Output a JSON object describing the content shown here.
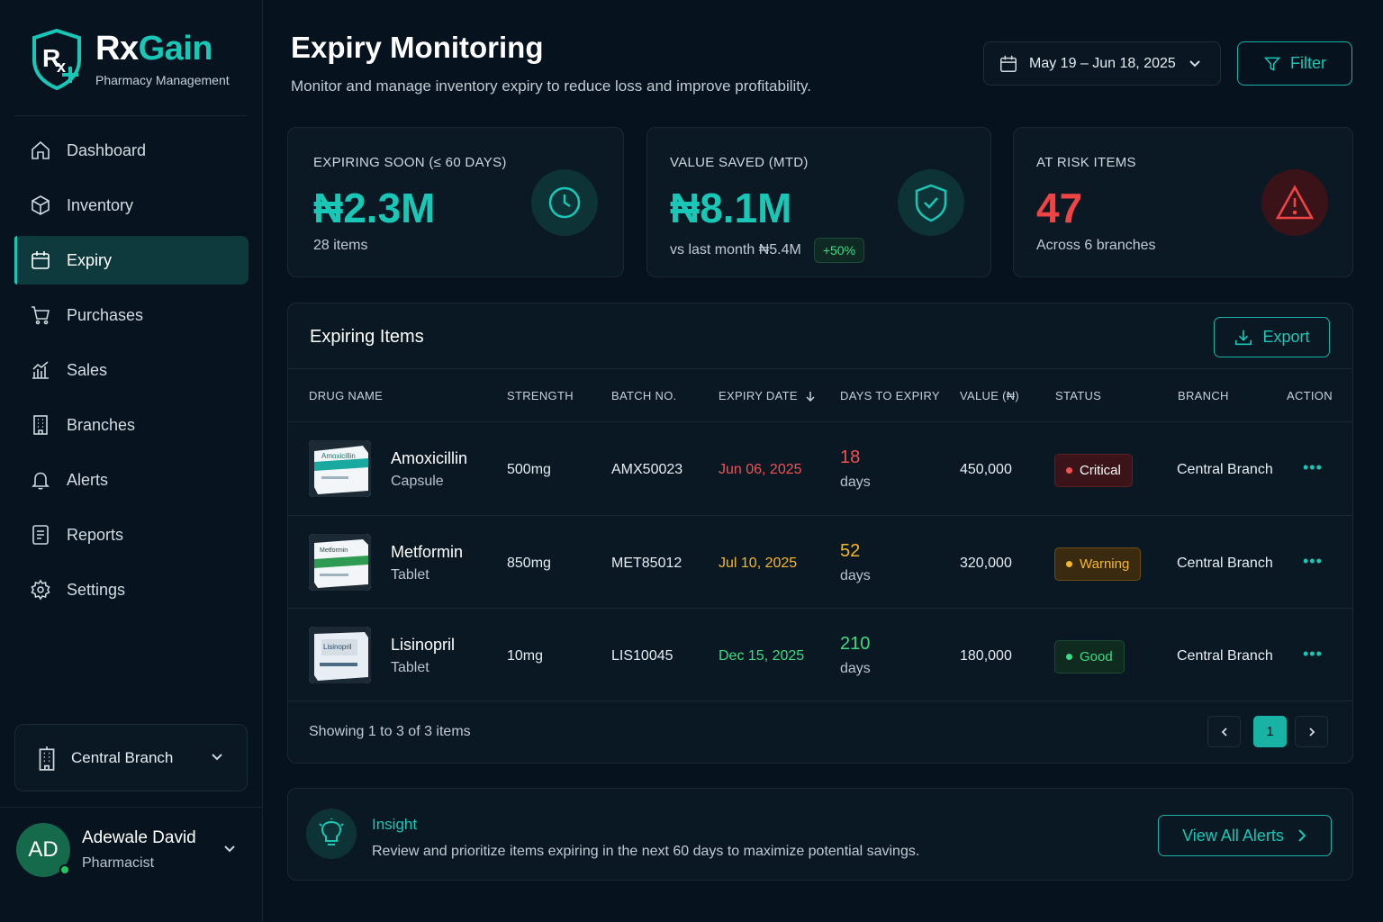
{
  "brand": {
    "name_part1": "Rx",
    "name_part2": "Gain",
    "subtitle": "Pharmacy Management"
  },
  "sidebar": {
    "items": [
      {
        "label": "Dashboard",
        "icon": "home-icon"
      },
      {
        "label": "Inventory",
        "icon": "box-icon"
      },
      {
        "label": "Expiry",
        "icon": "calendar-icon",
        "active": true
      },
      {
        "label": "Purchases",
        "icon": "cart-icon"
      },
      {
        "label": "Sales",
        "icon": "chart-icon"
      },
      {
        "label": "Branches",
        "icon": "building-icon"
      },
      {
        "label": "Alerts",
        "icon": "bell-icon"
      },
      {
        "label": "Reports",
        "icon": "report-icon"
      },
      {
        "label": "Settings",
        "icon": "gear-icon"
      }
    ],
    "branch": "Central Branch"
  },
  "user": {
    "initials": "AD",
    "name": "Adewale David",
    "role": "Pharmacist"
  },
  "header": {
    "title": "Expiry Monitoring",
    "subtitle": "Monitor and manage inventory expiry to reduce loss and improve profitability.",
    "date_range": "May 19 – Jun 18, 2025",
    "filter_label": "Filter"
  },
  "cards": [
    {
      "label": "EXPIRING SOON (≤ 60 DAYS)",
      "value": "₦2.3M",
      "foot": "28 items",
      "color": "#19c7b6",
      "icon": "clock-icon"
    },
    {
      "label": "VALUE SAVED (MTD)",
      "value": "₦8.1M",
      "foot": "vs last month ₦5.4M",
      "badge": "+50%",
      "color": "#19c7b6",
      "icon": "shield-check-icon"
    },
    {
      "label": "AT RISK ITEMS",
      "value": "47",
      "foot": "Across 6 branches",
      "color": "#ef4444",
      "icon": "warning-icon"
    }
  ],
  "table": {
    "title": "Expiring Items",
    "export_label": "Export",
    "columns": [
      "DRUG NAME",
      "STRENGTH",
      "BATCH NO.",
      "EXPIRY DATE",
      "DAYS TO EXPIRY",
      "VALUE (₦)",
      "STATUS",
      "BRANCH",
      "ACTION"
    ],
    "rows": [
      {
        "name": "Amoxicillin",
        "form": "Capsule",
        "strength": "500mg",
        "batch": "AMX50023",
        "expiry": "Jun 06, 2025",
        "days": "18",
        "days_label": "days",
        "value": "450,000",
        "status": "Critical",
        "branch": "Central Branch",
        "color": "#f05252",
        "package_text": "Amoxicillin"
      },
      {
        "name": "Metformin",
        "form": "Tablet",
        "strength": "850mg",
        "batch": "MET85012",
        "expiry": "Jul 10, 2025",
        "days": "52",
        "days_label": "days",
        "value": "320,000",
        "status": "Warning",
        "branch": "Central Branch",
        "color": "#f5b829",
        "package_text": "Metformin"
      },
      {
        "name": "Lisinopril",
        "form": "Tablet",
        "strength": "10mg",
        "batch": "LIS10045",
        "expiry": "Dec 15, 2025",
        "days": "210",
        "days_label": "days",
        "value": "180,000",
        "status": "Good",
        "branch": "Central Branch",
        "color": "#3ddc84",
        "package_text": "Lisinopril"
      }
    ],
    "showing": "Showing 1 to 3 of 3 items",
    "current_page": "1"
  },
  "insight": {
    "title": "Insight",
    "text": "Review and prioritize items expiring in the next 60 days to maximize potential savings.",
    "button": "View All Alerts"
  },
  "colors": {
    "accent": "#19c7b6",
    "background": "#06121d",
    "critical": "#f05252",
    "warning": "#f5b829",
    "good": "#3ddc84"
  }
}
